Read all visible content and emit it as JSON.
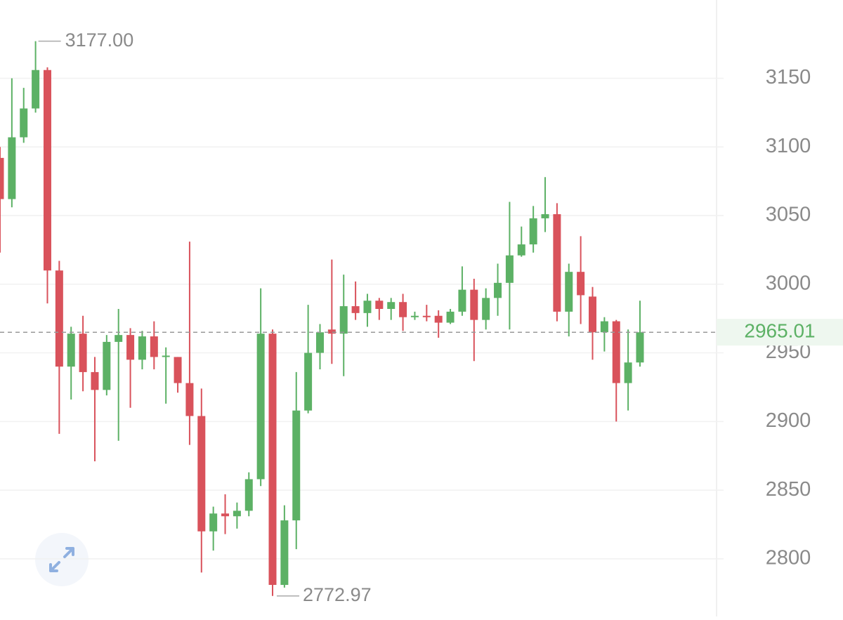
{
  "chart_data": {
    "type": "candlestick",
    "open": [
      3092,
      3062,
      3107,
      3128,
      3156,
      3010,
      2940,
      2964,
      2936,
      2923,
      2958,
      2963,
      2945,
      2962,
      2947,
      2947,
      2928,
      2904,
      2820,
      2833,
      2831,
      2835,
      2858,
      2964,
      2781,
      2828,
      2908,
      2950,
      2967,
      2964,
      2984,
      2979,
      2988,
      2982,
      2987,
      2976,
      2977,
      2977,
      2972,
      2980,
      2996,
      2974,
      2990,
      3001,
      3021,
      3029,
      3048,
      3051,
      2980,
      3009,
      2991,
      2965,
      2973,
      2928,
      2943
    ],
    "high": [
      3100,
      3150,
      3143,
      3177,
      3158,
      3017,
      2969,
      2977,
      2947,
      2963,
      2982,
      2968,
      2966,
      2973,
      2954,
      2947,
      3031,
      2924,
      2838,
      2847,
      2841,
      2863,
      2997,
      2967,
      2839,
      2936,
      2985,
      2971,
      3018,
      3007,
      3002,
      2993,
      2990,
      2990,
      2993,
      2980,
      2985,
      2981,
      2982,
      3013,
      3004,
      2997,
      3015,
      3060,
      3042,
      3057,
      3078,
      3059,
      3015,
      3035,
      2998,
      2976,
      2974,
      2967,
      2988
    ],
    "low": [
      3023,
      3056,
      3103,
      3125,
      2986,
      2891,
      2916,
      2922,
      2871,
      2919,
      2886,
      2910,
      2938,
      2938,
      2913,
      2921,
      2883,
      2790,
      2806,
      2818,
      2822,
      2831,
      2853,
      2772.97,
      2779,
      2807,
      2906,
      2938,
      2942,
      2933,
      2974,
      2969,
      2974,
      2974,
      2966,
      2974,
      2973,
      2961,
      2971,
      2977,
      2944,
      2967,
      2977,
      2967,
      3020,
      3023,
      3038,
      2973,
      2962,
      2971,
      2945,
      2951,
      2900,
      2908,
      2940
    ],
    "close": [
      3062,
      3107,
      3128,
      3156,
      3010,
      2940,
      2964,
      2936,
      2923,
      2958,
      2963,
      2945,
      2962,
      2947,
      2948,
      2928,
      2904,
      2820,
      2833,
      2831,
      2835,
      2858,
      2964,
      2781,
      2828,
      2908,
      2950,
      2965,
      2964,
      2984,
      2979,
      2988,
      2982,
      2987,
      2976,
      2977,
      2976,
      2972,
      2980,
      2996,
      2974,
      2990,
      3001,
      3021,
      3029,
      3048,
      3051,
      2980,
      3009,
      2992,
      2965,
      2973,
      2928,
      2943,
      2965
    ],
    "up_color": "#5cb165",
    "down_color": "#d9525b",
    "ylim": [
      2758,
      3207
    ],
    "yticks": [
      2800,
      2850,
      2900,
      2950,
      3000,
      3050,
      3100,
      3150
    ],
    "grid": true,
    "last_price": 2965.01,
    "high_marker": {
      "value": 3177,
      "label": "3177.00"
    },
    "low_marker": {
      "value": 2772.97,
      "label": "2772.97"
    }
  }
}
